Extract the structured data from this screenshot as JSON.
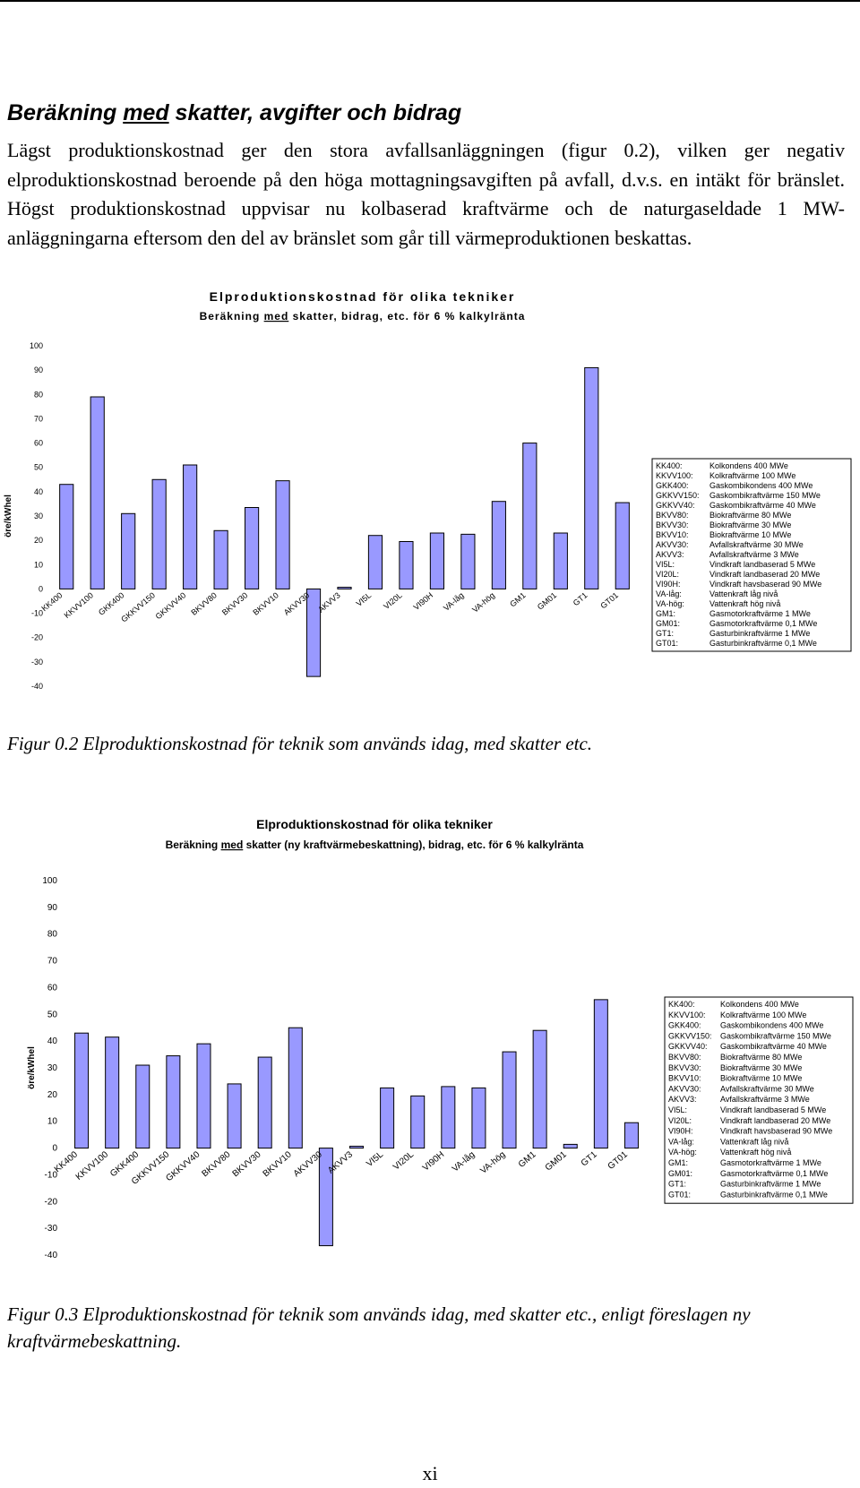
{
  "heading": {
    "parts": [
      "Beräkning ",
      "med",
      " skatter, avgifter och bidrag"
    ]
  },
  "paragraph": "Lägst produktionskostnad ger den stora avfallsanläggningen (figur 0.2), vilken ger negativ elproduktionskostnad beroende på den höga mottagningsavgiften på avfall, d.v.s. en intäkt för bränslet. Högst produktionskostnad uppvisar nu kolbaserad kraftvärme och de naturgaseldade 1 MW-anläggningarna eftersom den del av bränslet som går till värmeproduktionen beskattas.",
  "chart_data": [
    {
      "type": "bar",
      "title": "Elproduktionskostnad för olika tekniker",
      "subtitle_parts": [
        "Beräkning ",
        "med",
        " skatter, bidrag, etc. för 6 % kalkylränta"
      ],
      "y_label": "öre/kWhel",
      "categories": [
        "KK400",
        "KKVV100",
        "GKK400",
        "GKKVV150",
        "GKKVV40",
        "BKVV80",
        "BKVV30",
        "BKVV10",
        "AKVV30",
        "AKVV3",
        "VI5L",
        "VI20L",
        "VI90H",
        "VA-låg",
        "VA-hög",
        "GM1",
        "GM01",
        "GT1",
        "GT01"
      ],
      "values": [
        43,
        79,
        31,
        45,
        51,
        24,
        33.5,
        44.5,
        -36,
        0.7,
        22,
        19.5,
        23,
        22.5,
        36,
        60,
        23,
        91,
        35.5
      ],
      "color": "#9999ff",
      "ylim": [
        -40,
        100
      ],
      "yticks": [
        -40,
        -30,
        -20,
        -10,
        0,
        10,
        20,
        30,
        40,
        50,
        60,
        70,
        80,
        90,
        100
      ],
      "legend_entries": [
        {
          "code": "KK400:",
          "text": "Kolkondens 400 MWe"
        },
        {
          "code": "KKVV100:",
          "text": "Kolkraftvärme 100 MWe"
        },
        {
          "code": "GKK400:",
          "text": "Gaskombikondens 400 MWe"
        },
        {
          "code": "GKKVV150:",
          "text": "Gaskombikraftvärme 150 MWe"
        },
        {
          "code": "GKKVV40:",
          "text": "Gaskombikraftvärme 40 MWe"
        },
        {
          "code": "BKVV80:",
          "text": "Biokraftvärme 80 MWe"
        },
        {
          "code": "BKVV30:",
          "text": "Biokraftvärme 30 MWe"
        },
        {
          "code": "BKVV10:",
          "text": "Biokraftvärme 10 MWe"
        },
        {
          "code": "AKVV30:",
          "text": "Avfallskraftvärme 30 MWe"
        },
        {
          "code": "AKVV3:",
          "text": "Avfallskraftvärme 3 MWe"
        },
        {
          "code": "VI5L:",
          "text": "Vindkraft landbaserad 5 MWe"
        },
        {
          "code": "VI20L:",
          "text": "Vindkraft landbaserad 20 MWe"
        },
        {
          "code": "VI90H:",
          "text": "Vindkraft havsbaserad 90 MWe"
        },
        {
          "code": "VA-låg:",
          "text": "Vattenkraft låg nivå"
        },
        {
          "code": "VA-hög:",
          "text": "Vattenkraft hög nivå"
        },
        {
          "code": "GM1:",
          "text": "Gasmotorkraftvärme 1 MWe"
        },
        {
          "code": "GM01:",
          "text": "Gasmotorkraftvärme 0,1 MWe"
        },
        {
          "code": "GT1:",
          "text": "Gasturbinkraftvärme 1 MWe"
        },
        {
          "code": "GT01:",
          "text": "Gasturbinkraftvärme 0,1 MWe"
        }
      ]
    },
    {
      "type": "bar",
      "title": "Elproduktionskostnad för olika tekniker",
      "subtitle_parts": [
        "Beräkning ",
        "med",
        " skatter (ny kraftvärmebeskattning), bidrag, etc. för 6 % kalkylränta"
      ],
      "y_label": "öre/kWhel",
      "categories": [
        "KK400",
        "KKVV100",
        "GKK400",
        "GKKVV150",
        "GKKVV40",
        "BKVV80",
        "BKVV30",
        "BKVV10",
        "AKVV30",
        "AKVV3",
        "VI5L",
        "VI20L",
        "VI90H",
        "VA-låg",
        "VA-hög",
        "GM1",
        "GM01",
        "GT1",
        "GT01"
      ],
      "values": [
        43,
        41.5,
        31,
        34.5,
        39,
        24,
        34,
        45,
        -36.5,
        0.7,
        22.5,
        19.5,
        23,
        22.5,
        36,
        44,
        1.4,
        55.5,
        9.5
      ],
      "color": "#9999ff",
      "ylim": [
        -40,
        100
      ],
      "yticks": [
        -40,
        -30,
        -20,
        -10,
        0,
        10,
        20,
        30,
        40,
        50,
        60,
        70,
        80,
        90,
        100
      ],
      "legend_entries": [
        {
          "code": "KK400:",
          "text": "Kolkondens 400 MWe"
        },
        {
          "code": "KKVV100:",
          "text": "Kolkraftvärme 100 MWe"
        },
        {
          "code": "GKK400:",
          "text": "Gaskombikondens 400 MWe"
        },
        {
          "code": "GKKVV150:",
          "text": "Gaskombikraftvärme 150 MWe"
        },
        {
          "code": "GKKVV40:",
          "text": "Gaskombikraftvärme 40 MWe"
        },
        {
          "code": "BKVV80:",
          "text": "Biokraftvärme 80 MWe"
        },
        {
          "code": "BKVV30:",
          "text": "Biokraftvärme 30 MWe"
        },
        {
          "code": "BKVV10:",
          "text": "Biokraftvärme 10 MWe"
        },
        {
          "code": "AKVV30:",
          "text": "Avfallskraftvärme 30 MWe"
        },
        {
          "code": "AKVV3:",
          "text": "Avfallskraftvärme 3 MWe"
        },
        {
          "code": "VI5L:",
          "text": "Vindkraft landbaserad 5 MWe"
        },
        {
          "code": "VI20L:",
          "text": "Vindkraft landbaserad 20 MWe"
        },
        {
          "code": "VI90H:",
          "text": "Vindkraft havsbaserad 90 MWe"
        },
        {
          "code": "VA-låg:",
          "text": "Vattenkraft låg nivå"
        },
        {
          "code": "VA-hög:",
          "text": "Vattenkraft hög nivå"
        },
        {
          "code": "GM1:",
          "text": "Gasmotorkraftvärme 1 MWe"
        },
        {
          "code": "GM01:",
          "text": "Gasmotorkraftvärme 0,1 MWe"
        },
        {
          "code": "GT1:",
          "text": "Gasturbinkraftvärme 1 MWe"
        },
        {
          "code": "GT01:",
          "text": "Gasturbinkraftvärme 0,1 MWe"
        }
      ]
    }
  ],
  "captions": [
    "Figur 0.2 Elproduktionskostnad för teknik som används idag, med skatter etc.",
    "Figur 0.3 Elproduktionskostnad för teknik som används idag, med skatter etc., enligt föreslagen ny kraftvärmebeskattning."
  ],
  "page_number": "xi"
}
